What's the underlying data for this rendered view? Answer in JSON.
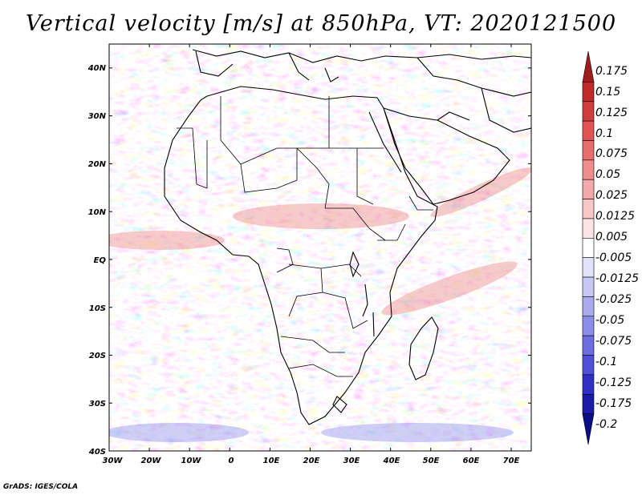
{
  "title": "Vertical velocity [m/s] at 850hPa, VT: 2020121500",
  "footer": "GrADS: IGES/COLA",
  "map": {
    "lat_labels": [
      "40N",
      "30N",
      "20N",
      "10N",
      "EQ",
      "10S",
      "20S",
      "30S",
      "40S"
    ],
    "lon_labels": [
      "30W",
      "20W",
      "10W",
      "0",
      "10E",
      "20E",
      "30E",
      "40E",
      "50E",
      "60E",
      "70E"
    ],
    "lat_range": [
      -40,
      45
    ],
    "lon_range": [
      -30,
      75
    ]
  },
  "colorbar": {
    "labels": [
      "0.175",
      "0.15",
      "0.125",
      "0.1",
      "0.075",
      "0.05",
      "0.025",
      "0.0125",
      "0.005",
      "-0.005",
      "-0.0125",
      "-0.025",
      "-0.05",
      "-0.075",
      "-0.1",
      "-0.125",
      "-0.175",
      "-0.2"
    ],
    "colors": [
      "#a11c1c",
      "#c22a2a",
      "#d13d3d",
      "#e25353",
      "#e86d6d",
      "#ef8c8c",
      "#f4aaaa",
      "#f8c8c8",
      "#fce4e4",
      "#ffffff",
      "#e2e2fb",
      "#c8c8f5",
      "#aaaaef",
      "#8c8ce9",
      "#6d6de2",
      "#4f4fd8",
      "#3030c9",
      "#1b1ba8",
      "#0c0c85"
    ]
  },
  "colors": {
    "positive": "#e66a6a",
    "negative": "#7272e6",
    "land_border": "#000000"
  }
}
